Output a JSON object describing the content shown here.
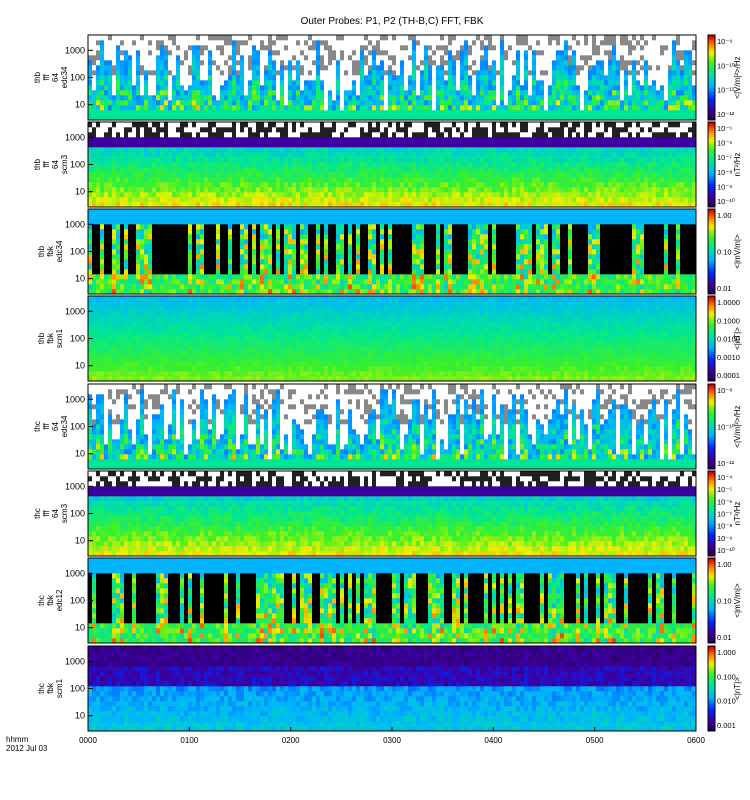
{
  "title": "Outer Probes: P1, P2 (TH-B,C) FFT, FBK",
  "time_axis": {
    "label_line1": "hhmm",
    "label_line2": "2012 Jul 03",
    "ticks": [
      "0000",
      "0100",
      "0200",
      "0300",
      "0400",
      "0500",
      "0600"
    ]
  },
  "chart_data": [
    {
      "type": "heatmap",
      "panel": "thb-fff-64-edc34",
      "ylabel": [
        "thb",
        "fff",
        "64",
        "edc34"
      ],
      "yscale": "log",
      "yticks": [
        "10",
        "100",
        "1000"
      ],
      "colorbar_label": "<|V/m|²>/Hz",
      "colorbar_ticks": [
        "10⁻¹²",
        "10⁻¹¹",
        "10⁻¹⁰",
        "10⁻⁹"
      ],
      "colormap": "rainbow",
      "style": "bursts"
    },
    {
      "type": "heatmap",
      "panel": "thb-fff-64-scm3",
      "ylabel": [
        "thb",
        "fff",
        "64",
        "scm3"
      ],
      "yscale": "log",
      "yticks": [
        "10",
        "100",
        "1000"
      ],
      "colorbar_label": "nT²/Hz",
      "colorbar_ticks": [
        "10⁻¹⁰",
        "10⁻⁹",
        "10⁻⁸",
        "10⁻⁷",
        "10⁻⁶",
        "10⁻⁵"
      ],
      "colormap": "rainbow",
      "style": "bands"
    },
    {
      "type": "heatmap",
      "panel": "thb-fbk-edc34",
      "ylabel": [
        "thb",
        "fbk",
        "edc34"
      ],
      "yscale": "log",
      "yticks": [
        "10",
        "100",
        "1000"
      ],
      "colorbar_label": "<|mV/m|>",
      "colorbar_ticks": [
        "0.01",
        "0.10",
        "1.00"
      ],
      "colormap": "rainbow",
      "style": "fbk"
    },
    {
      "type": "heatmap",
      "panel": "thb-fbk-scm1",
      "ylabel": [
        "thb",
        "fbk",
        "scm1"
      ],
      "yscale": "log",
      "yticks": [
        "10",
        "100",
        "1000"
      ],
      "colorbar_label": "<|nT|>",
      "colorbar_ticks": [
        "0.0001",
        "0.0010",
        "0.0100",
        "0.1000",
        "1.0000"
      ],
      "colormap": "rainbow",
      "style": "fbk-smooth"
    },
    {
      "type": "heatmap",
      "panel": "thc-fff-64-edc34",
      "ylabel": [
        "thc",
        "fff",
        "64",
        "edc34"
      ],
      "yscale": "log",
      "yticks": [
        "10",
        "100",
        "1000"
      ],
      "colorbar_label": "<|V/m|²>/Hz",
      "colorbar_ticks": [
        "10⁻¹²",
        "10⁻¹⁰",
        "10⁻⁸"
      ],
      "colormap": "rainbow",
      "style": "bursts"
    },
    {
      "type": "heatmap",
      "panel": "thc-fff-64-scm3",
      "ylabel": [
        "thc",
        "fff",
        "64",
        "scm3"
      ],
      "yscale": "log",
      "yticks": [
        "10",
        "100",
        "1000"
      ],
      "colorbar_label": "nT²/Hz",
      "colorbar_ticks": [
        "10⁻¹⁰",
        "10⁻⁹",
        "10⁻⁸",
        "10⁻⁷",
        "10⁻⁶",
        "10⁻⁵",
        "10⁻⁴"
      ],
      "colormap": "rainbow",
      "style": "bands"
    },
    {
      "type": "heatmap",
      "panel": "thc-fbk-edc12",
      "ylabel": [
        "thc",
        "fbk",
        "edc12"
      ],
      "yscale": "log",
      "yticks": [
        "10",
        "100",
        "1000"
      ],
      "colorbar_label": "<|mV/m|>",
      "colorbar_ticks": [
        "0.01",
        "0.10",
        "1.00"
      ],
      "colormap": "rainbow",
      "style": "fbk"
    },
    {
      "type": "heatmap",
      "panel": "thc-fbk-scm1",
      "ylabel": [
        "thc",
        "fbk",
        "scm1"
      ],
      "yscale": "log",
      "yticks": [
        "10",
        "100",
        "1000"
      ],
      "colorbar_label": "<|nT|>",
      "colorbar_ticks": [
        "0.001",
        "0.010",
        "0.100",
        "1.000"
      ],
      "colormap": "rainbow",
      "style": "fbk-dark"
    }
  ]
}
